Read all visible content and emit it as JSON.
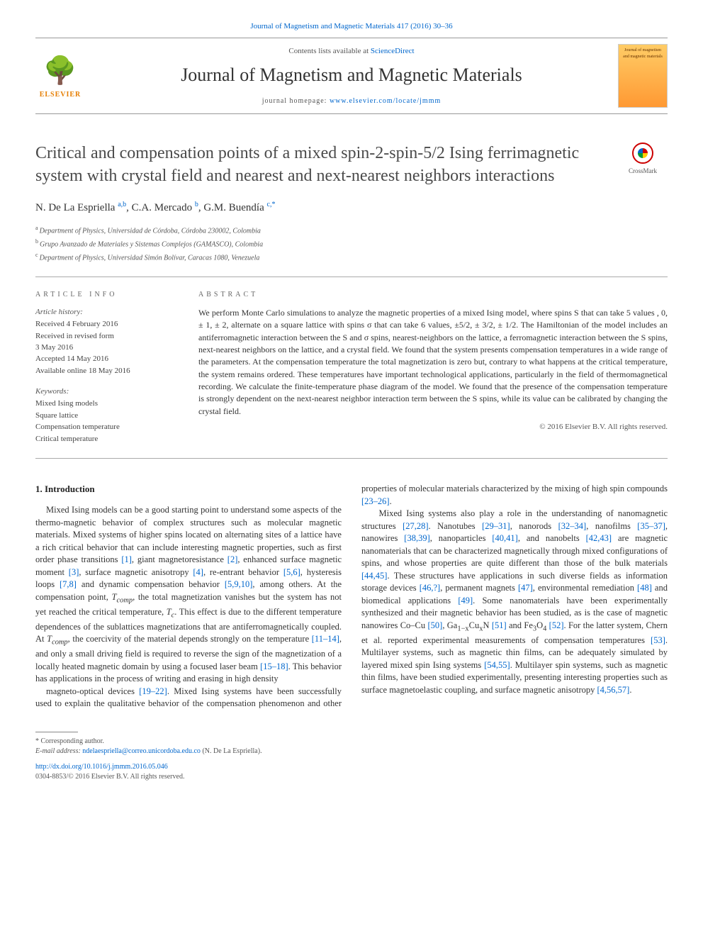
{
  "top_link": "Journal of Magnetism and Magnetic Materials 417 (2016) 30–36",
  "masthead": {
    "contents_prefix": "Contents lists available at ",
    "contents_link": "ScienceDirect",
    "journal_name": "Journal of Magnetism and Magnetic Materials",
    "homepage_prefix": "journal homepage: ",
    "homepage_link": "www.elsevier.com/locate/jmmm",
    "elsevier_label": "ELSEVIER",
    "cover_text": "Journal of magnetism and magnetic materials"
  },
  "crossmark_label": "CrossMark",
  "title": "Critical and compensation points of a mixed spin-2-spin-5/2 Ising ferrimagnetic system with crystal field and nearest and next-nearest neighbors interactions",
  "authors_html": "N. De La Espriella <sup>a,b</sup>, C.A. Mercado <sup>b</sup>, G.M. Buendía <sup>c,*</sup>",
  "affiliations": [
    {
      "sup": "a",
      "text": "Department of Physics, Universidad de Córdoba, Córdoba 230002, Colombia"
    },
    {
      "sup": "b",
      "text": "Grupo Avanzado de Materiales y Sistemas Complejos (GAMASCO), Colombia"
    },
    {
      "sup": "c",
      "text": "Department of Physics, Universidad Simón Bolívar, Caracas 1080, Venezuela"
    }
  ],
  "article_info_label": "ARTICLE INFO",
  "history_label": "Article history:",
  "history": [
    "Received 4 February 2016",
    "Received in revised form",
    "3 May 2016",
    "Accepted 14 May 2016",
    "Available online 18 May 2016"
  ],
  "keywords_label": "Keywords:",
  "keywords": [
    "Mixed Ising models",
    "Square lattice",
    "Compensation temperature",
    "Critical temperature"
  ],
  "abstract_label": "ABSTRACT",
  "abstract_text": "We perform Monte Carlo simulations to analyze the magnetic properties of a mixed Ising model, where spins S that can take 5 values , 0, ± 1, ± 2, alternate on a square lattice with spins σ that can take 6 values, ±5/2, ± 3/2, ± 1/2. The Hamiltonian of the model includes an antiferromagnetic interaction between the S and σ spins, nearest-neighbors on the lattice, a ferromagnetic interaction between the S spins, next-nearest neighbors on the lattice, and a crystal field. We found that the system presents compensation temperatures in a wide range of the parameters. At the compensation temperature the total magnetization is zero but, contrary to what happens at the critical temperature, the system remains ordered. These temperatures have important technological applications, particularly in the field of thermomagnetical recording. We calculate the finite-temperature phase diagram of the model. We found that the presence of the compensation temperature is strongly dependent on the next-nearest neighbor interaction term between the S spins, while its value can be calibrated by changing the crystal field.",
  "abstract_copyright": "© 2016 Elsevier B.V. All rights reserved.",
  "intro_heading": "1. Introduction",
  "intro_col1_html": "Mixed Ising models can be a good starting point to understand some aspects of the thermo-magnetic behavior of complex structures such as molecular magnetic materials. Mixed systems of higher spins located on alternating sites of a lattice have a rich critical behavior that can include interesting magnetic properties, such as first order phase transitions <span class='ref'>[1]</span>, giant magnetoresistance <span class='ref'>[2]</span>, enhanced surface magnetic moment <span class='ref'>[3]</span>, surface magnetic anisotropy <span class='ref'>[4]</span>, re-entrant behavior <span class='ref'>[5,6]</span>, hysteresis loops <span class='ref'>[7,8]</span> and dynamic compensation behavior <span class='ref'>[5,9,10]</span>, among others. At the compensation point, <span class='ital'>T<sub>comp</sub></span>, the total magnetization vanishes but the system has not yet reached the critical temperature, <span class='ital'>T<sub>c</sub></span>. This effect is due to the different temperature dependences of the sublattices magnetizations that are antiferromagnetically coupled. At <span class='ital'>T<sub>comp</sub></span>, the coercivity of the material depends strongly on the temperature <span class='ref'>[11–14]</span>, and only a small driving field is required to reverse the sign of the magnetization of a locally heated magnetic domain by using a focused laser beam <span class='ref'>[15–18]</span>. This behavior has applications in the process of writing and erasing in high density",
  "intro_col2_html": "magneto-optical devices <span class='ref'>[19–22]</span>. Mixed Ising systems have been successfully used to explain the qualitative behavior of the compensation phenomenon and other properties of molecular materials characterized by the mixing of high spin compounds <span class='ref'>[23–26]</span>.<br>&nbsp;&nbsp;&nbsp;&nbsp;Mixed Ising systems also play a role in the understanding of nanomagnetic structures <span class='ref'>[27,28]</span>. Nanotubes <span class='ref'>[29–31]</span>, nanorods <span class='ref'>[32–34]</span>, nanofilms <span class='ref'>[35–37]</span>, nanowires <span class='ref'>[38,39]</span>, nanoparticles <span class='ref'>[40,41]</span>, and nanobelts <span class='ref'>[42,43]</span> are magnetic nanomaterials that can be characterized magnetically through mixed configurations of spins, and whose properties are quite different than those of the bulk materials <span class='ref'>[44,45]</span>. These structures have applications in such diverse fields as information storage devices <span class='ref'>[46,?]</span>, permanent magnets <span class='ref'>[47]</span>, environmental remediation <span class='ref'>[48]</span> and biomedical applications <span class='ref'>[49]</span>. Some nanomaterials have been experimentally synthesized and their magnetic behavior has been studied, as is the case of magnetic nanowires Co–Cu <span class='ref'>[50]</span>, Ga<sub>1−x</sub>Cu<sub>x</sub>N <span class='ref'>[51]</span> and Fe<sub>3</sub>O<sub>4</sub> <span class='ref'>[52]</span>. For the latter system, Chern et al. reported experimental measurements of compensation temperatures <span class='ref'>[53]</span>. Multilayer systems, such as magnetic thin films, can be adequately simulated by layered mixed spin Ising systems <span class='ref'>[54,55]</span>. Multilayer spin systems, such as magnetic thin films, have been studied experimentally, presenting interesting properties such as surface magnetoelastic coupling, and surface magnetic anisotropy <span class='ref'>[4,56,57]</span>.",
  "footnotes": {
    "corresponding": "* Corresponding author.",
    "email_label": "E-mail address: ",
    "email": "ndelaespriella@correo.unicordoba.edu.co",
    "email_who": " (N. De La Espriella).",
    "doi": "http://dx.doi.org/10.1016/j.jmmm.2016.05.046",
    "issn_line": "0304-8853/© 2016 Elsevier B.V. All rights reserved."
  }
}
